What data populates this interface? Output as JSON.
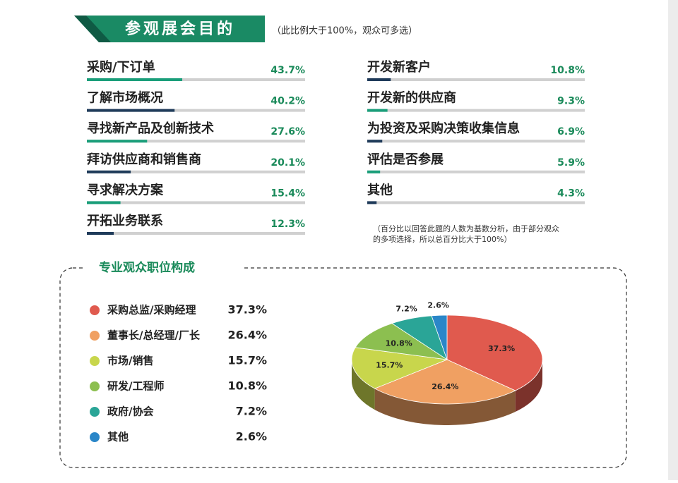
{
  "header": {
    "title": "参观展会目的",
    "subtitle": "（此比例大于100%，观众可多选）"
  },
  "chart_data": [
    {
      "type": "bar",
      "categories": [
        "采购/下订单",
        "了解市场概况",
        "寻找新产品及创新技术",
        "拜访供应商和销售商",
        "寻求解决方案",
        "开拓业务联系",
        "开发新客户",
        "开发新的供应商",
        "为投资及采购决策收集信息",
        "评估是否参展",
        "其他"
      ],
      "values": [
        43.7,
        40.2,
        27.6,
        20.1,
        15.4,
        12.3,
        10.8,
        9.3,
        6.9,
        5.9,
        4.3
      ],
      "value_labels": [
        "43.7%",
        "40.2%",
        "27.6%",
        "20.1%",
        "15.4%",
        "12.3%",
        "10.8%",
        "9.3%",
        "6.9%",
        "5.9%",
        "4.3%"
      ],
      "colors": [
        "#1a9e7a",
        "#1f3b5a",
        "#1a9e7a",
        "#1f3b5a",
        "#1a9e7a",
        "#1f3b5a",
        "#1f3b5a",
        "#1a9e7a",
        "#1f3b5a",
        "#1a9e7a",
        "#1f3b5a"
      ],
      "xlim": [
        0,
        100
      ],
      "note": [
        "（百分比以回答此题的人数为基数分析，由于部分观众",
        "的多项选择，所以总百分比大于100%）"
      ]
    },
    {
      "type": "pie",
      "title": "专业观众职位构成",
      "categories": [
        "采购总监/采购经理",
        "董事长/总经理/厂长",
        "市场/销售",
        "研发/工程师",
        "政府/协会",
        "其他"
      ],
      "values": [
        37.3,
        26.4,
        15.7,
        10.8,
        7.2,
        2.6
      ],
      "value_labels": [
        "37.3%",
        "26.4%",
        "15.7%",
        "10.8%",
        "7.2%",
        "2.6%"
      ],
      "colors": [
        "#e05a4e",
        "#f0a062",
        "#c8d64c",
        "#8cbf50",
        "#2aa597",
        "#2a86c8"
      ]
    }
  ]
}
